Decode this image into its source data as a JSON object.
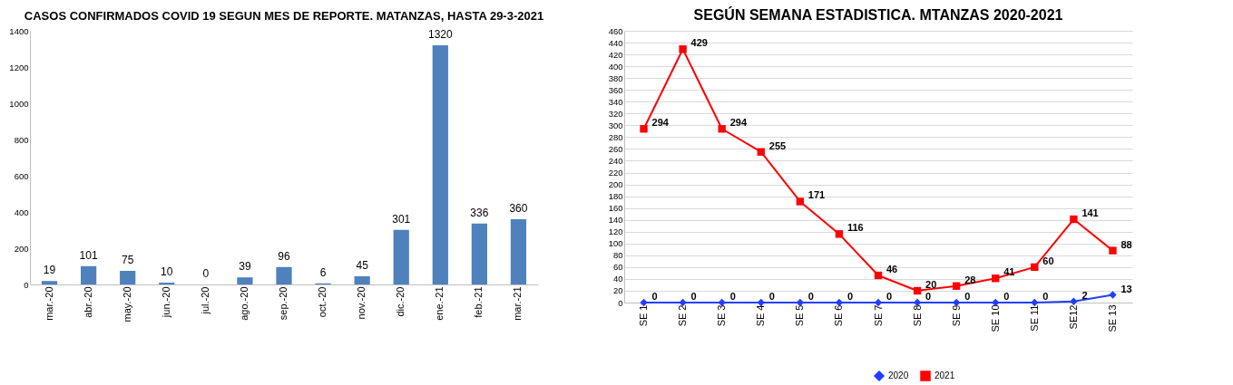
{
  "chart_data": [
    {
      "type": "bar",
      "title": "CASOS CONFIRMADOS COVID 19 SEGUN MES DE REPORTE. MATANZAS, HASTA 29-3-2021",
      "categories": [
        "mar.-20",
        "abr.-20",
        "may.-20",
        "jun.-20",
        "jul.-20",
        "ago.-20",
        "sep.-20",
        "oct.-20",
        "nov.-20",
        "dic.-20",
        "ene.-21",
        "feb.-21",
        "mar.-21"
      ],
      "values": [
        19,
        101,
        75,
        10,
        0,
        39,
        96,
        6,
        45,
        301,
        1320,
        336,
        360
      ],
      "color": "#4f81bd",
      "ylim": [
        0,
        1400
      ],
      "yticks": [
        0,
        200,
        400,
        600,
        800,
        1000,
        1200,
        1400
      ],
      "data_labels": true
    },
    {
      "type": "line",
      "title": "SEGÚN SEMANA ESTADISTICA. MTANZAS 2020-2021",
      "categories": [
        "SE 1",
        "SE 2",
        "SE 3",
        "SE 4",
        "SE 5",
        "SE 6",
        "SE 7",
        "SE 8",
        "SE 9",
        "SE 10",
        "SE 11",
        "SE12",
        "SE 13"
      ],
      "series": [
        {
          "name": "2020",
          "color": "#1f3fff",
          "marker": "diamond",
          "values": [
            0,
            0,
            0,
            0,
            0,
            0,
            0,
            0,
            0,
            0,
            0,
            2,
            13
          ]
        },
        {
          "name": "2021",
          "color": "#ff0000",
          "marker": "square",
          "values": [
            294,
            429,
            294,
            255,
            171,
            116,
            46,
            20,
            28,
            41,
            60,
            141,
            88
          ]
        }
      ],
      "ylim": [
        0,
        460
      ],
      "yticks": [
        0,
        20,
        40,
        60,
        80,
        100,
        120,
        140,
        160,
        180,
        200,
        220,
        240,
        260,
        280,
        300,
        320,
        340,
        360,
        380,
        400,
        420,
        440,
        460
      ],
      "grid": "y",
      "legend": "bottom",
      "data_labels": true
    }
  ]
}
